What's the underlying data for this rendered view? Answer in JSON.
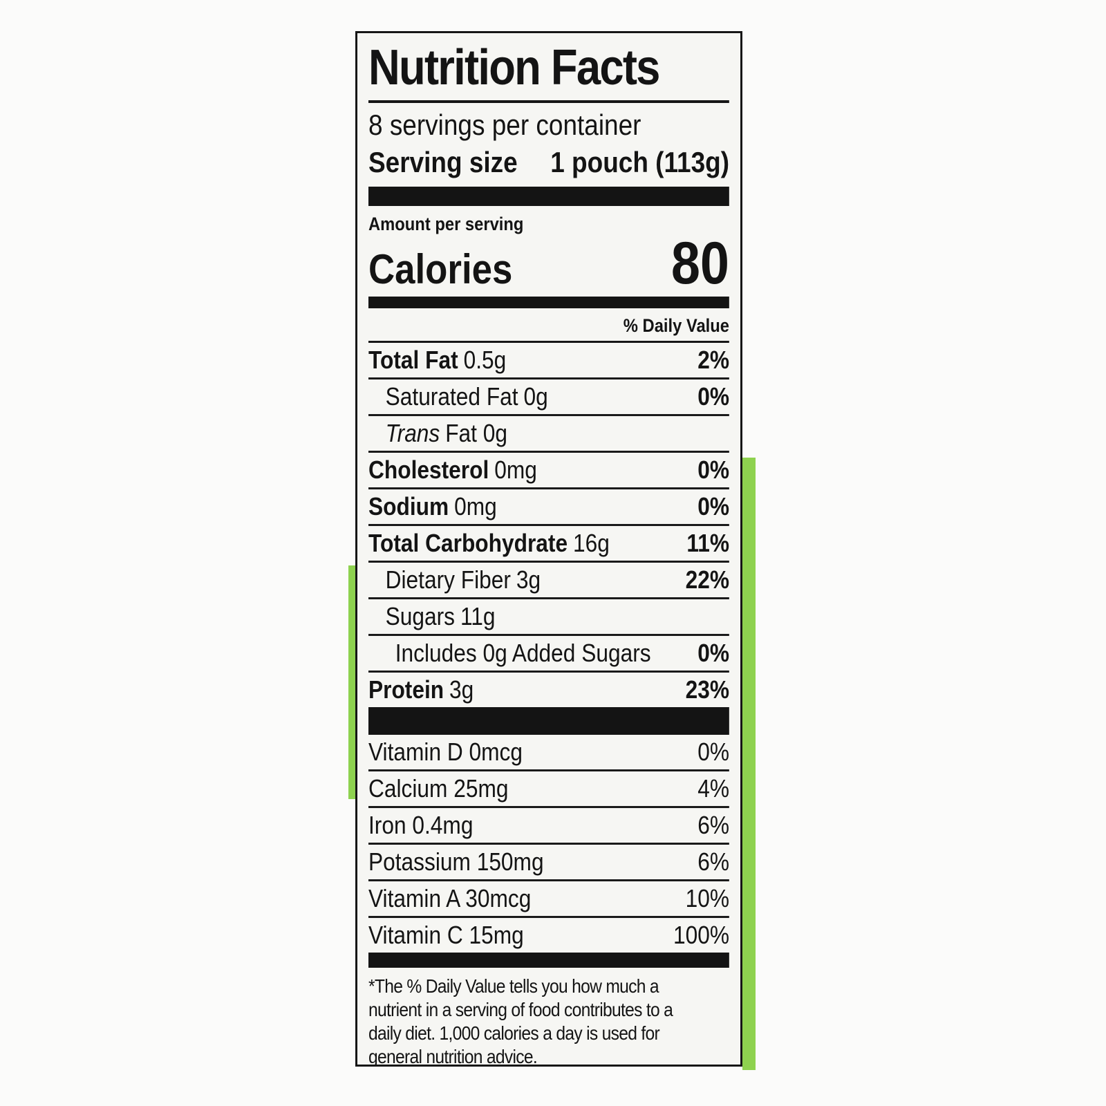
{
  "page": {
    "background": "#fbfbfa"
  },
  "packaging": {
    "green": "#8ed24f"
  },
  "label": {
    "title": "Nutrition Facts",
    "servings_per_container": "8 servings per container",
    "serving_size": {
      "label": "Serving size",
      "value": "1 pouch (113g)"
    },
    "amount_per_serving": "Amount per serving",
    "calories": {
      "label": "Calories",
      "value": "80"
    },
    "daily_value_header": "% Daily Value",
    "nutrients": [
      {
        "name": "Total Fat",
        "amount": "0.5g",
        "dv": "2%",
        "name_bold": true,
        "name_italic": false,
        "indent": 0,
        "dv_bold": true
      },
      {
        "name": "Saturated Fat",
        "amount": "0g",
        "dv": "0%",
        "name_bold": false,
        "name_italic": false,
        "indent": 1,
        "dv_bold": true
      },
      {
        "name": "Trans",
        "amount": "Fat 0g",
        "dv": "",
        "name_bold": false,
        "name_italic": true,
        "indent": 1,
        "dv_bold": false
      },
      {
        "name": "Cholesterol",
        "amount": "0mg",
        "dv": "0%",
        "name_bold": true,
        "name_italic": false,
        "indent": 0,
        "dv_bold": true
      },
      {
        "name": "Sodium",
        "amount": "0mg",
        "dv": "0%",
        "name_bold": true,
        "name_italic": false,
        "indent": 0,
        "dv_bold": true
      },
      {
        "name": "Total Carbohydrate",
        "amount": "16g",
        "dv": "11%",
        "name_bold": true,
        "name_italic": false,
        "indent": 0,
        "dv_bold": true
      },
      {
        "name": "Dietary Fiber",
        "amount": "3g",
        "dv": "22%",
        "name_bold": false,
        "name_italic": false,
        "indent": 1,
        "dv_bold": true
      },
      {
        "name": "Sugars",
        "amount": "11g",
        "dv": "",
        "name_bold": false,
        "name_italic": false,
        "indent": 1,
        "dv_bold": false
      },
      {
        "name": "Includes 0g Added Sugars",
        "amount": "",
        "dv": "0%",
        "name_bold": false,
        "name_italic": false,
        "indent": 2,
        "dv_bold": true
      },
      {
        "name": "Protein",
        "amount": "3g",
        "dv": "23%",
        "name_bold": true,
        "name_italic": false,
        "indent": 0,
        "dv_bold": true
      }
    ],
    "vitamins": [
      {
        "name": "Vitamin D 0mcg",
        "dv": "0%"
      },
      {
        "name": "Calcium 25mg",
        "dv": "4%"
      },
      {
        "name": "Iron 0.4mg",
        "dv": "6%"
      },
      {
        "name": "Potassium 150mg",
        "dv": "6%"
      },
      {
        "name": "Vitamin A 30mcg",
        "dv": "10%"
      },
      {
        "name": "Vitamin C 15mg",
        "dv": "100%"
      }
    ],
    "footnote_lines": [
      "*The % Daily Value tells you how much a",
      "nutrient in a serving of food contributes to a",
      "daily diet. 1,000 calories a day is used for",
      "general nutrition advice."
    ]
  }
}
